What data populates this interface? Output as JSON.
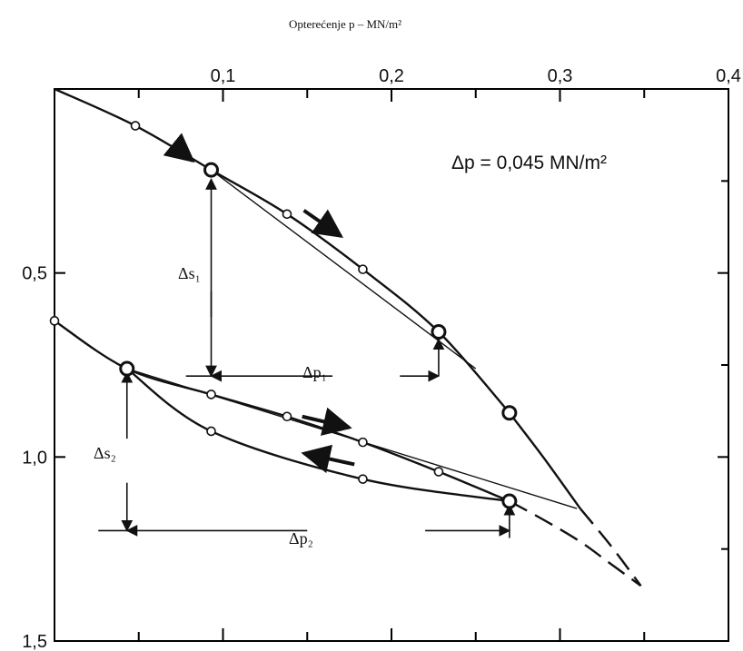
{
  "chart_data": {
    "type": "line",
    "title": "Opterećenje p – MN/m²",
    "xlabel": "Opterećenje p – MN/m²",
    "ylabel": "",
    "xlim": [
      0,
      0.4
    ],
    "ylim": [
      0,
      1.5
    ],
    "y_inverted": true,
    "x_axis_position": "top",
    "x_ticks": [
      0.1,
      0.2,
      0.3,
      0.4
    ],
    "x_tick_labels": [
      "0,1",
      "0,2",
      "0,3",
      "0,4"
    ],
    "y_ticks": [
      0.5,
      1.0,
      1.5
    ],
    "y_tick_labels": [
      "0,5",
      "1,0",
      "1,5"
    ],
    "grid": false,
    "series": [
      {
        "type": "line",
        "x": [
          0.0,
          0.048,
          0.093,
          0.138,
          0.183,
          0.228,
          0.27
        ],
        "y": [
          0.0,
          0.1,
          0.22,
          0.34,
          0.49,
          0.66,
          0.88
        ]
      },
      {
        "type": "line",
        "x": [
          0.0,
          0.043,
          0.093,
          0.138,
          0.183,
          0.228,
          0.27
        ],
        "y": [
          0.63,
          0.76,
          0.83,
          0.89,
          0.96,
          1.04,
          1.12
        ]
      },
      {
        "type": "line",
        "x": [
          0.043,
          0.093,
          0.183,
          0.27
        ],
        "y": [
          0.76,
          0.93,
          1.06,
          1.12
        ]
      },
      {
        "type": "line",
        "dashed": true,
        "x": [
          0.27,
          0.29,
          0.312,
          0.33,
          0.348
        ],
        "y": [
          1.12,
          1.17,
          1.23,
          1.29,
          1.35
        ]
      }
    ],
    "annotations": [
      "Δp = 0,045 MN/m²",
      "Δs₁",
      "Δp₁",
      "Δs₂",
      "Δp₂"
    ]
  }
}
